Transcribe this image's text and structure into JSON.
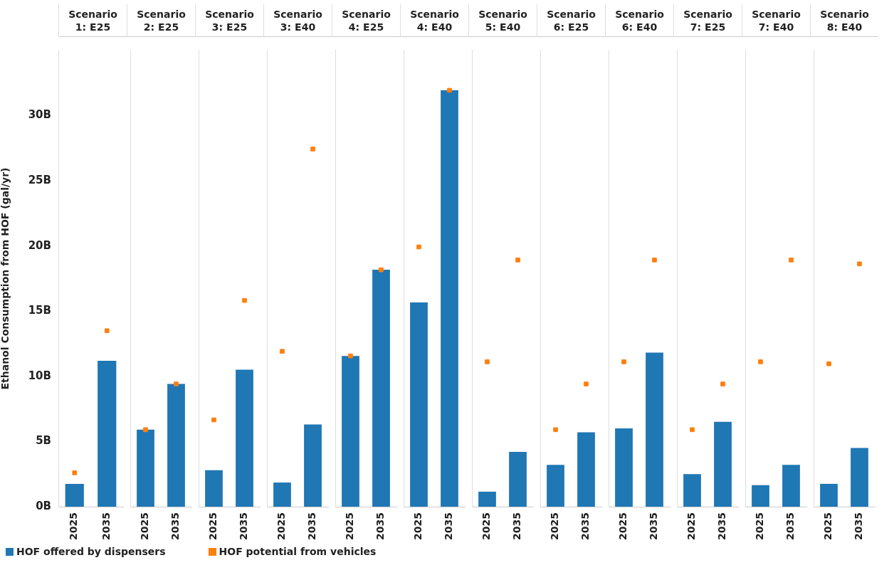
{
  "chart_data": [
    {
      "type": "bar",
      "title": "Scenario 1: E25",
      "ylabel": "Ethanol Consumption from HOF (gal/yr)",
      "legend": "bottom",
      "categories": [
        "2025",
        "2035"
      ],
      "ylim": [
        0,
        35
      ],
      "yticks": [
        {
          "value": 0,
          "label": "0B"
        },
        {
          "value": 5,
          "label": "5B"
        },
        {
          "value": 10,
          "label": "10B"
        },
        {
          "value": 15,
          "label": "15B"
        },
        {
          "value": 20,
          "label": "20B"
        },
        {
          "value": 25,
          "label": "25B"
        },
        {
          "value": 30,
          "label": "30B"
        }
      ],
      "grid": false,
      "series": [
        {
          "name": "HOF offered by dispensers",
          "color": "#1f77b4",
          "values": [
            1.75,
            11.2
          ]
        },
        {
          "name": "HOF potential from vehicles",
          "type": "scatter",
          "marker": "square",
          "color": "#ff7f0e",
          "values": [
            2.6,
            13.5
          ]
        }
      ]
    },
    {
      "type": "bar",
      "title": "Scenario 2: E25",
      "categories": [
        "2025",
        "2035"
      ],
      "ylim": [
        0,
        35
      ],
      "tick_labels": "x",
      "grid": false,
      "series": [
        {
          "color": "#1f77b4",
          "values": [
            5.9,
            9.4
          ]
        },
        {
          "type": "scatter",
          "marker": "square",
          "color": "#ff7f0e",
          "values": [
            5.9,
            9.4
          ]
        }
      ]
    },
    {
      "type": "bar",
      "title": "Scenario 3: E25",
      "categories": [
        "2025",
        "2035"
      ],
      "ylim": [
        0,
        35
      ],
      "tick_labels": "x",
      "grid": false,
      "series": [
        {
          "color": "#1f77b4",
          "values": [
            2.8,
            10.5
          ]
        },
        {
          "type": "scatter",
          "marker": "square",
          "color": "#ff7f0e",
          "values": [
            6.65,
            15.8
          ]
        }
      ]
    },
    {
      "type": "bar",
      "title": "Scenario 3: E40",
      "categories": [
        "2025",
        "2035"
      ],
      "ylim": [
        0,
        35
      ],
      "tick_labels": "x",
      "grid": false,
      "series": [
        {
          "color": "#1f77b4",
          "values": [
            1.85,
            6.3
          ]
        },
        {
          "type": "scatter",
          "marker": "square",
          "color": "#ff7f0e",
          "values": [
            11.9,
            27.4
          ]
        }
      ]
    },
    {
      "type": "bar",
      "title": "Scenario 4: E25",
      "categories": [
        "2025",
        "2035"
      ],
      "ylim": [
        0,
        35
      ],
      "tick_labels": "x",
      "grid": false,
      "series": [
        {
          "color": "#1f77b4",
          "values": [
            11.55,
            18.15
          ]
        },
        {
          "type": "scatter",
          "marker": "square",
          "color": "#ff7f0e",
          "values": [
            11.55,
            18.15
          ]
        }
      ]
    },
    {
      "type": "bar",
      "title": "Scenario 4: E40",
      "categories": [
        "2025",
        "2035"
      ],
      "ylim": [
        0,
        35
      ],
      "tick_labels": "x",
      "grid": false,
      "series": [
        {
          "color": "#1f77b4",
          "values": [
            15.65,
            31.9
          ]
        },
        {
          "type": "scatter",
          "marker": "square",
          "color": "#ff7f0e",
          "values": [
            19.9,
            31.9
          ]
        }
      ]
    },
    {
      "type": "bar",
      "title": "Scenario 5: E40",
      "categories": [
        "2025",
        "2035"
      ],
      "ylim": [
        0,
        35
      ],
      "tick_labels": "x",
      "grid": false,
      "series": [
        {
          "color": "#1f77b4",
          "values": [
            1.15,
            4.2
          ]
        },
        {
          "type": "scatter",
          "marker": "square",
          "color": "#ff7f0e",
          "values": [
            11.1,
            18.9
          ]
        }
      ]
    },
    {
      "type": "bar",
      "title": "Scenario 6: E25",
      "categories": [
        "2025",
        "2035"
      ],
      "ylim": [
        0,
        35
      ],
      "tick_labels": "x",
      "grid": false,
      "series": [
        {
          "color": "#1f77b4",
          "values": [
            3.2,
            5.7
          ]
        },
        {
          "type": "scatter",
          "marker": "square",
          "color": "#ff7f0e",
          "values": [
            5.9,
            9.4
          ]
        }
      ]
    },
    {
      "type": "bar",
      "title": "Scenario 6: E40",
      "categories": [
        "2025",
        "2035"
      ],
      "ylim": [
        0,
        35
      ],
      "tick_labels": "x",
      "grid": false,
      "series": [
        {
          "color": "#1f77b4",
          "values": [
            6.0,
            11.8
          ]
        },
        {
          "type": "scatter",
          "marker": "square",
          "color": "#ff7f0e",
          "values": [
            11.1,
            18.9
          ]
        }
      ]
    },
    {
      "type": "bar",
      "title": "Scenario 7: E25",
      "categories": [
        "2025",
        "2035"
      ],
      "ylim": [
        0,
        35
      ],
      "tick_labels": "x",
      "grid": false,
      "series": [
        {
          "color": "#1f77b4",
          "values": [
            2.5,
            6.5
          ]
        },
        {
          "type": "scatter",
          "marker": "square",
          "color": "#ff7f0e",
          "values": [
            5.9,
            9.4
          ]
        }
      ]
    },
    {
      "type": "bar",
      "title": "Scenario 7: E40",
      "categories": [
        "2025",
        "2035"
      ],
      "ylim": [
        0,
        35
      ],
      "tick_labels": "x",
      "grid": false,
      "series": [
        {
          "color": "#1f77b4",
          "values": [
            1.65,
            3.2
          ]
        },
        {
          "type": "scatter",
          "marker": "square",
          "color": "#ff7f0e",
          "values": [
            11.1,
            18.9
          ]
        }
      ]
    },
    {
      "type": "bar",
      "title": "Scenario 8: E40",
      "categories": [
        "2025",
        "2035"
      ],
      "ylim": [
        0,
        35
      ],
      "tick_labels": "x",
      "grid": false,
      "series": [
        {
          "color": "#1f77b4",
          "values": [
            1.75,
            4.5
          ]
        },
        {
          "type": "scatter",
          "marker": "square",
          "color": "#ff7f0e",
          "values": [
            10.95,
            18.6
          ]
        }
      ]
    }
  ]
}
